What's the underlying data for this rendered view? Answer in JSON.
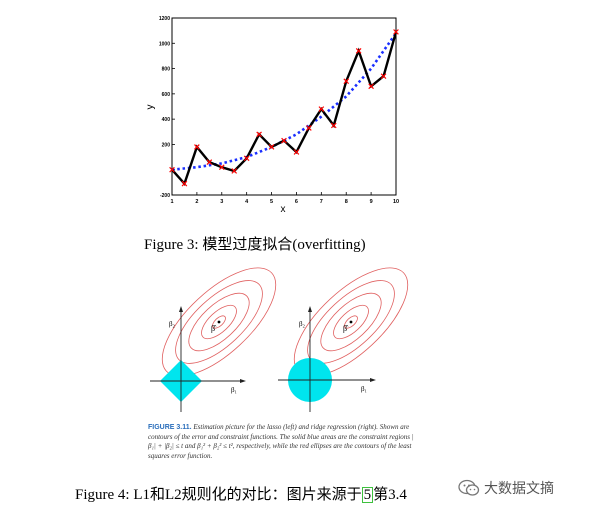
{
  "chart_data": {
    "type": "line",
    "xlabel": "x",
    "ylabel": "y",
    "xlim": [
      1,
      10
    ],
    "ylim": [
      -200,
      1200
    ],
    "xticks": [
      1,
      2,
      3,
      4,
      5,
      6,
      7,
      8,
      9,
      10
    ],
    "yticks": [
      -200,
      0,
      200,
      400,
      600,
      800,
      1000,
      1200
    ],
    "ytick_labels": [
      "-200",
      "",
      "200",
      "400",
      "600",
      "800",
      "1000",
      "1200"
    ],
    "series": [
      {
        "style": "solid-black-with-red-x-markers",
        "color": "#000000",
        "marker_color": "#ff0000",
        "x": [
          1.0,
          1.5,
          2.0,
          2.5,
          3.0,
          3.5,
          4.0,
          4.5,
          5.0,
          5.5,
          6.0,
          6.5,
          7.0,
          7.5,
          8.0,
          8.5,
          9.0,
          9.5,
          10.0
        ],
        "y": [
          0,
          -110,
          180,
          60,
          20,
          -10,
          90,
          280,
          180,
          230,
          140,
          330,
          480,
          350,
          700,
          940,
          660,
          740,
          1090
        ]
      },
      {
        "style": "dotted-blue-fit",
        "color": "#1a2fff",
        "x": [
          1.0,
          2.0,
          3.0,
          4.0,
          5.0,
          6.0,
          7.0,
          8.0,
          9.0,
          10.0
        ],
        "y": [
          0,
          20,
          50,
          100,
          180,
          280,
          420,
          580,
          800,
          1080
        ]
      }
    ]
  },
  "caption3": "Figure 3: 模型过度拟合(overfitting)",
  "figure2": {
    "left_axis_y": "β₂",
    "left_axis_x": "β₁",
    "right_axis_y": "β₂",
    "right_axis_x": "β₁",
    "beta_hat": "β̂",
    "colors": {
      "region": "#00e5ee",
      "contour": "#e06060"
    },
    "caption_label": "FIGURE 3.11.",
    "caption_text": "Estimation picture for the lasso (left) and ridge regression (right). Shown are contours of the error and constraint functions. The solid blue areas are the constraint regions |β₁| + |β₂| ≤ t and β₁² + β₂² ≤ t², respectively, while the red ellipses are the contours of the least squares error function."
  },
  "caption4": {
    "prefix": "Figure 4: L1和L2规则化的对比：图片来源于",
    "ref": "5",
    "suffix": "第3.4"
  },
  "watermark": {
    "icon": "wechat-icon",
    "text": "大数据文摘"
  }
}
